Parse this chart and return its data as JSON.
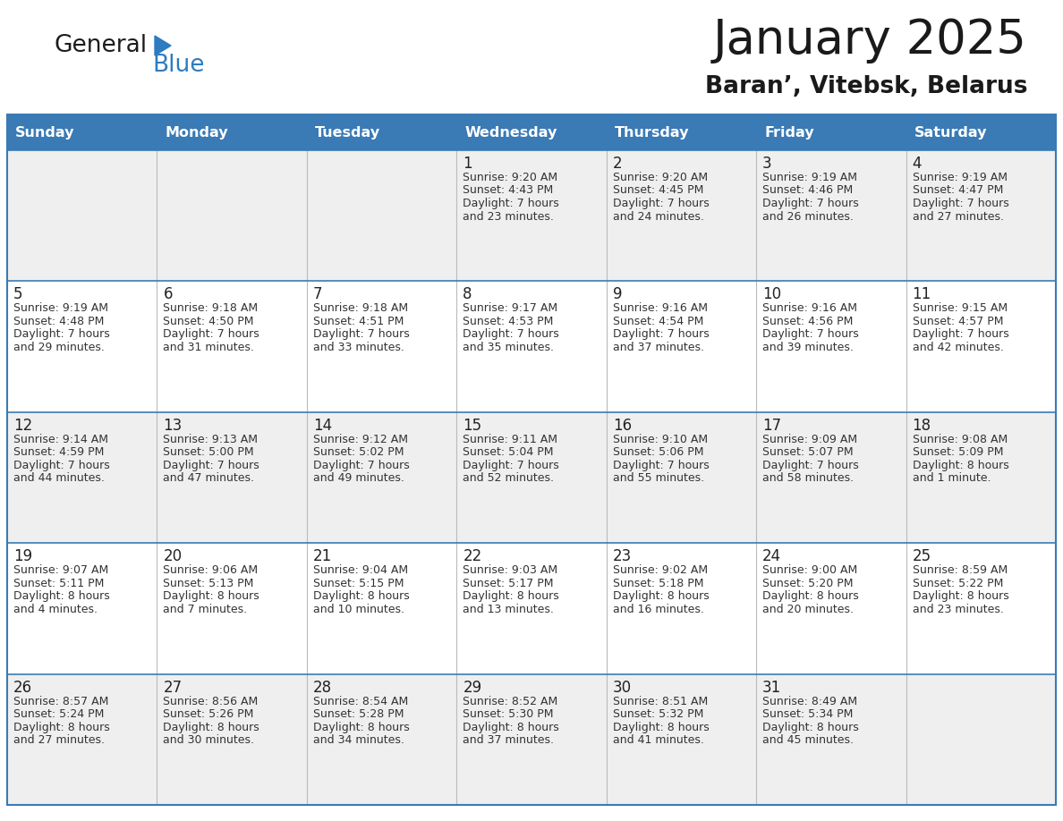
{
  "title": "January 2025",
  "subtitle": "Baran’, Vitebsk, Belarus",
  "header_color": "#3a7ab5",
  "header_text_color": "#ffffff",
  "days_of_week": [
    "Sunday",
    "Monday",
    "Tuesday",
    "Wednesday",
    "Thursday",
    "Friday",
    "Saturday"
  ],
  "grid_line_color": "#3a7ab5",
  "cell_bg_even": "#efefef",
  "cell_bg_odd": "#ffffff",
  "text_color": "#333333",
  "calendar_data": [
    [
      null,
      null,
      null,
      {
        "day": 1,
        "sunrise": "9:20 AM",
        "sunset": "4:43 PM",
        "daylight": "7 hours\nand 23 minutes."
      },
      {
        "day": 2,
        "sunrise": "9:20 AM",
        "sunset": "4:45 PM",
        "daylight": "7 hours\nand 24 minutes."
      },
      {
        "day": 3,
        "sunrise": "9:19 AM",
        "sunset": "4:46 PM",
        "daylight": "7 hours\nand 26 minutes."
      },
      {
        "day": 4,
        "sunrise": "9:19 AM",
        "sunset": "4:47 PM",
        "daylight": "7 hours\nand 27 minutes."
      }
    ],
    [
      {
        "day": 5,
        "sunrise": "9:19 AM",
        "sunset": "4:48 PM",
        "daylight": "7 hours\nand 29 minutes."
      },
      {
        "day": 6,
        "sunrise": "9:18 AM",
        "sunset": "4:50 PM",
        "daylight": "7 hours\nand 31 minutes."
      },
      {
        "day": 7,
        "sunrise": "9:18 AM",
        "sunset": "4:51 PM",
        "daylight": "7 hours\nand 33 minutes."
      },
      {
        "day": 8,
        "sunrise": "9:17 AM",
        "sunset": "4:53 PM",
        "daylight": "7 hours\nand 35 minutes."
      },
      {
        "day": 9,
        "sunrise": "9:16 AM",
        "sunset": "4:54 PM",
        "daylight": "7 hours\nand 37 minutes."
      },
      {
        "day": 10,
        "sunrise": "9:16 AM",
        "sunset": "4:56 PM",
        "daylight": "7 hours\nand 39 minutes."
      },
      {
        "day": 11,
        "sunrise": "9:15 AM",
        "sunset": "4:57 PM",
        "daylight": "7 hours\nand 42 minutes."
      }
    ],
    [
      {
        "day": 12,
        "sunrise": "9:14 AM",
        "sunset": "4:59 PM",
        "daylight": "7 hours\nand 44 minutes."
      },
      {
        "day": 13,
        "sunrise": "9:13 AM",
        "sunset": "5:00 PM",
        "daylight": "7 hours\nand 47 minutes."
      },
      {
        "day": 14,
        "sunrise": "9:12 AM",
        "sunset": "5:02 PM",
        "daylight": "7 hours\nand 49 minutes."
      },
      {
        "day": 15,
        "sunrise": "9:11 AM",
        "sunset": "5:04 PM",
        "daylight": "7 hours\nand 52 minutes."
      },
      {
        "day": 16,
        "sunrise": "9:10 AM",
        "sunset": "5:06 PM",
        "daylight": "7 hours\nand 55 minutes."
      },
      {
        "day": 17,
        "sunrise": "9:09 AM",
        "sunset": "5:07 PM",
        "daylight": "7 hours\nand 58 minutes."
      },
      {
        "day": 18,
        "sunrise": "9:08 AM",
        "sunset": "5:09 PM",
        "daylight": "8 hours\nand 1 minute."
      }
    ],
    [
      {
        "day": 19,
        "sunrise": "9:07 AM",
        "sunset": "5:11 PM",
        "daylight": "8 hours\nand 4 minutes."
      },
      {
        "day": 20,
        "sunrise": "9:06 AM",
        "sunset": "5:13 PM",
        "daylight": "8 hours\nand 7 minutes."
      },
      {
        "day": 21,
        "sunrise": "9:04 AM",
        "sunset": "5:15 PM",
        "daylight": "8 hours\nand 10 minutes."
      },
      {
        "day": 22,
        "sunrise": "9:03 AM",
        "sunset": "5:17 PM",
        "daylight": "8 hours\nand 13 minutes."
      },
      {
        "day": 23,
        "sunrise": "9:02 AM",
        "sunset": "5:18 PM",
        "daylight": "8 hours\nand 16 minutes."
      },
      {
        "day": 24,
        "sunrise": "9:00 AM",
        "sunset": "5:20 PM",
        "daylight": "8 hours\nand 20 minutes."
      },
      {
        "day": 25,
        "sunrise": "8:59 AM",
        "sunset": "5:22 PM",
        "daylight": "8 hours\nand 23 minutes."
      }
    ],
    [
      {
        "day": 26,
        "sunrise": "8:57 AM",
        "sunset": "5:24 PM",
        "daylight": "8 hours\nand 27 minutes."
      },
      {
        "day": 27,
        "sunrise": "8:56 AM",
        "sunset": "5:26 PM",
        "daylight": "8 hours\nand 30 minutes."
      },
      {
        "day": 28,
        "sunrise": "8:54 AM",
        "sunset": "5:28 PM",
        "daylight": "8 hours\nand 34 minutes."
      },
      {
        "day": 29,
        "sunrise": "8:52 AM",
        "sunset": "5:30 PM",
        "daylight": "8 hours\nand 37 minutes."
      },
      {
        "day": 30,
        "sunrise": "8:51 AM",
        "sunset": "5:32 PM",
        "daylight": "8 hours\nand 41 minutes."
      },
      {
        "day": 31,
        "sunrise": "8:49 AM",
        "sunset": "5:34 PM",
        "daylight": "8 hours\nand 45 minutes."
      },
      null
    ]
  ]
}
